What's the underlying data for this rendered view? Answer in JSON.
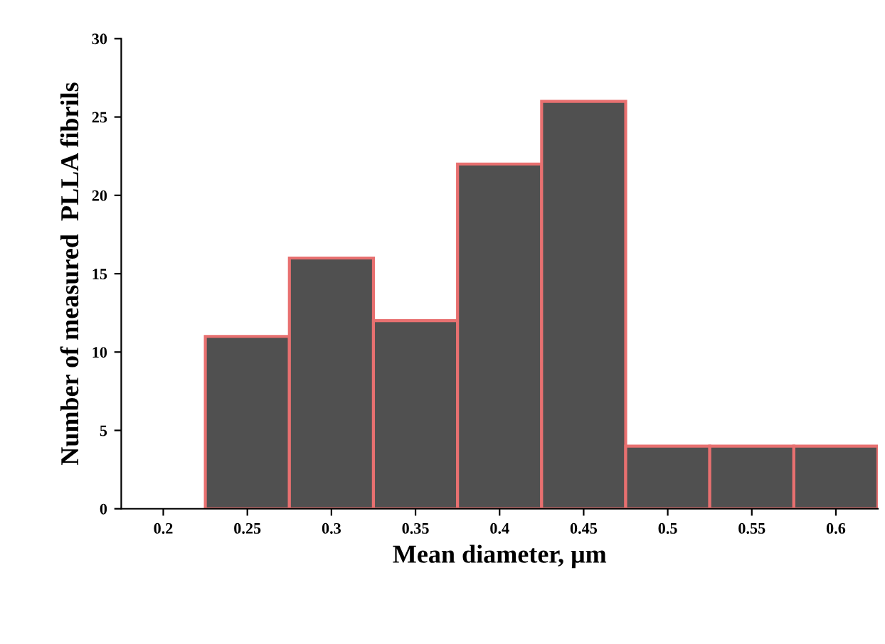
{
  "chart_data": {
    "type": "bar",
    "categories": [
      "0.2",
      "0.25",
      "0.3",
      "0.35",
      "0.4",
      "0.45",
      "0.5",
      "0.55",
      "0.6"
    ],
    "values": [
      0,
      11,
      16,
      12,
      22,
      26,
      4,
      4,
      4
    ],
    "color": "#505050",
    "xlabel": "Mean diameter, μm",
    "ylabel": "Number of measured  PLLA fibrils",
    "ylim": [
      0,
      30
    ],
    "yticks": [
      0,
      5,
      10,
      15,
      20,
      25,
      30
    ],
    "grid": false,
    "legend": false
  }
}
